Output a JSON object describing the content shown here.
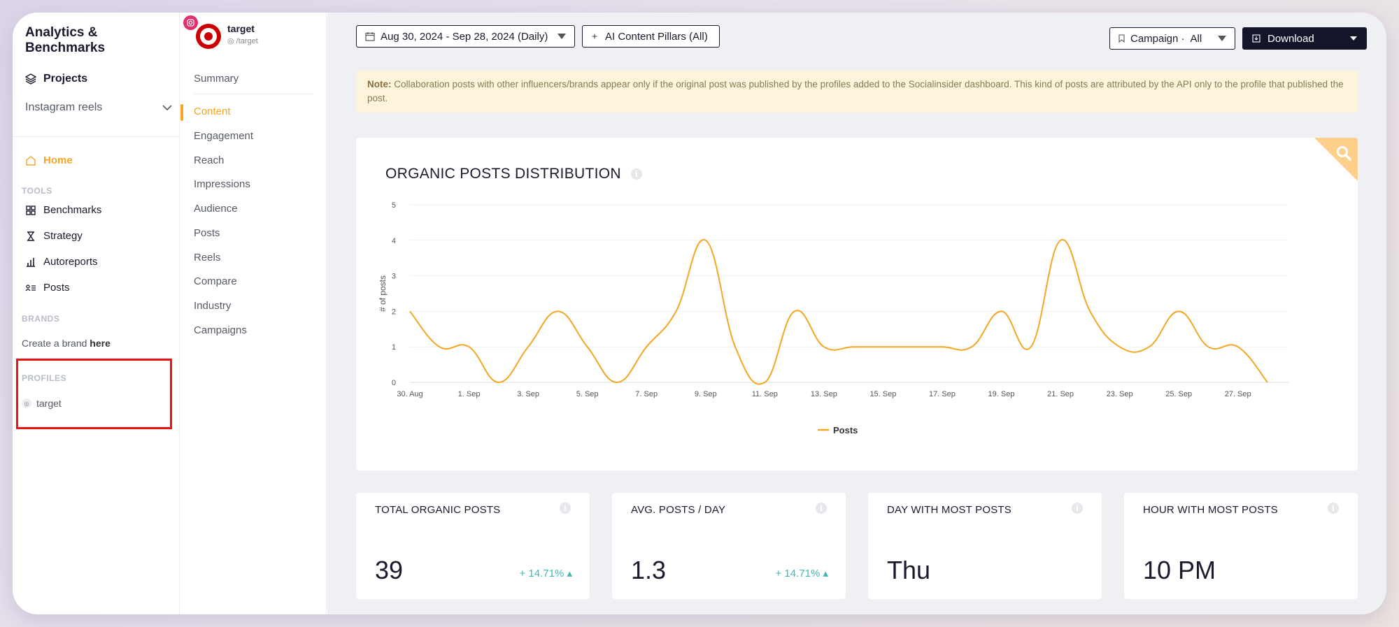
{
  "sidebar": {
    "title": "Analytics & Benchmarks",
    "projects_label": "Projects",
    "project_selected": "Instagram reels",
    "home_label": "Home",
    "tools_label": "TOOLS",
    "tools": [
      {
        "label": "Benchmarks",
        "icon": "grid-icon"
      },
      {
        "label": "Strategy",
        "icon": "hourglass-icon"
      },
      {
        "label": "Autoreports",
        "icon": "bar-chart-icon"
      },
      {
        "label": "Posts",
        "icon": "posts-list-icon"
      }
    ],
    "brands_label": "BRANDS",
    "create_brand_text": "Create a brand ",
    "create_brand_link": "here",
    "profiles_label": "PROFILES",
    "profile_item": "target"
  },
  "subnav": {
    "profile_name": "target",
    "profile_handle": "/target",
    "items": [
      "Summary",
      "Content",
      "Engagement",
      "Reach",
      "Impressions",
      "Audience",
      "Posts",
      "Reels",
      "Compare",
      "Industry",
      "Campaigns"
    ],
    "active": "Content"
  },
  "toolbar": {
    "date_range": "Aug 30, 2024 - Sep 28, 2024 (Daily)",
    "pillars": "AI Content Pillars (All)",
    "campaign_label": "Campaign ·",
    "campaign_value": "All",
    "download_label": "Download"
  },
  "note": {
    "prefix": "Note:",
    "text": " Collaboration posts with other influencers/brands appear only if the original post was published by the profiles added to the Socialinsider dashboard. This kind of posts are attributed by the API only to the profile that published the post."
  },
  "chart_title": "ORGANIC POSTS DISTRIBUTION",
  "chart_data": {
    "type": "line",
    "title": "ORGANIC POSTS DISTRIBUTION",
    "ylabel": "# of posts",
    "xlabel": "",
    "ylim": [
      0,
      5
    ],
    "yticks": [
      0,
      1,
      2,
      3,
      4,
      5
    ],
    "x": [
      "30. Aug",
      "31. Aug",
      "1. Sep",
      "2. Sep",
      "3. Sep",
      "4. Sep",
      "5. Sep",
      "6. Sep",
      "7. Sep",
      "8. Sep",
      "9. Sep",
      "10. Sep",
      "11. Sep",
      "12. Sep",
      "13. Sep",
      "14. Sep",
      "15. Sep",
      "16. Sep",
      "17. Sep",
      "18. Sep",
      "19. Sep",
      "20. Sep",
      "21. Sep",
      "22. Sep",
      "23. Sep",
      "24. Sep",
      "25. Sep",
      "26. Sep",
      "27. Sep",
      "28. Sep"
    ],
    "xtick_labels": [
      "30. Aug",
      "1. Sep",
      "3. Sep",
      "5. Sep",
      "7. Sep",
      "9. Sep",
      "11. Sep",
      "13. Sep",
      "15. Sep",
      "17. Sep",
      "19. Sep",
      "21. Sep",
      "23. Sep",
      "25. Sep",
      "27. Sep"
    ],
    "series": [
      {
        "name": "Posts",
        "color": "#f5a623",
        "values": [
          2,
          1,
          1,
          0,
          1,
          2,
          1,
          0,
          1,
          2,
          4,
          1,
          0,
          2,
          1,
          1,
          1,
          1,
          1,
          1,
          2,
          1,
          4,
          2,
          1,
          1,
          2,
          1,
          1,
          0
        ]
      }
    ],
    "legend": "bottom-center",
    "grid": true
  },
  "stats": [
    {
      "label": "TOTAL ORGANIC POSTS",
      "value": "39",
      "change": "+ 14.71%"
    },
    {
      "label": "AVG. POSTS / DAY",
      "value": "1.3",
      "change": "+ 14.71%"
    },
    {
      "label": "DAY WITH MOST POSTS",
      "value": "Thu",
      "change": ""
    },
    {
      "label": "HOUR WITH MOST POSTS",
      "value": "10 PM",
      "change": ""
    }
  ],
  "colors": {
    "accent": "#f5a623",
    "dark": "#14142b",
    "positive": "#3fb8b5",
    "highlight_box": "#ee1111"
  }
}
